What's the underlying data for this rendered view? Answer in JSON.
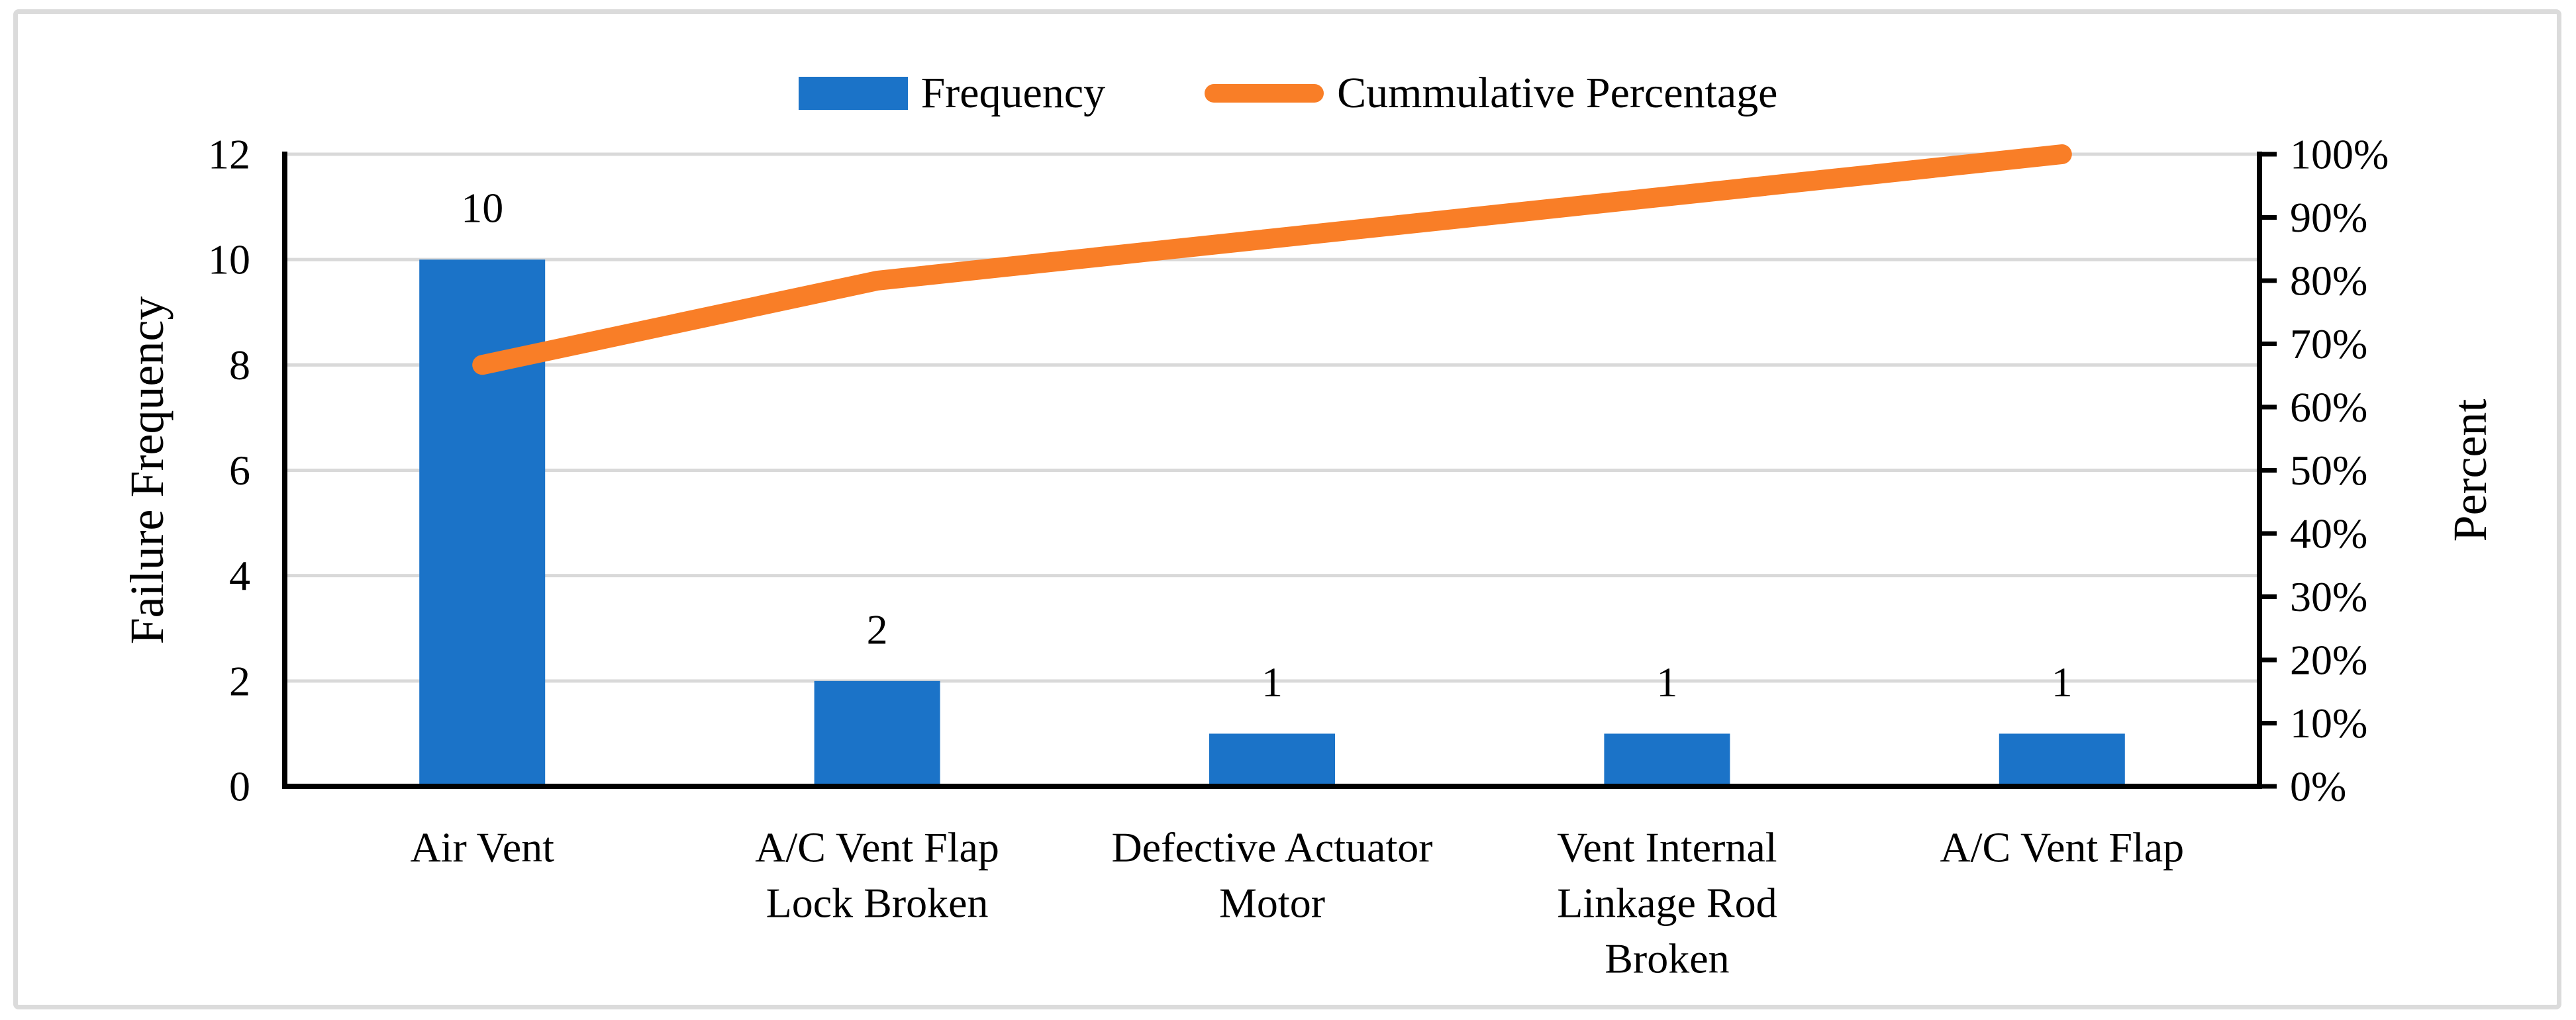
{
  "chart_data": {
    "type": "bar",
    "subtype": "pareto-combo-bar-line",
    "categories": [
      "Air Vent",
      "A/C Vent Flap Lock Broken",
      "Defective Actuator Motor",
      "Vent Internal Linkage Rod Broken",
      "A/C Vent Flap"
    ],
    "category_label_lines": [
      [
        "Air Vent"
      ],
      [
        "A/C Vent Flap",
        "Lock Broken"
      ],
      [
        "Defective Actuator",
        "Motor"
      ],
      [
        "Vent Internal",
        "Linkage Rod",
        "Broken"
      ],
      [
        "A/C Vent Flap"
      ]
    ],
    "series": [
      {
        "name": "Frequency",
        "type": "bar",
        "axis": "left",
        "values": [
          10,
          2,
          1,
          1,
          1
        ],
        "data_labels": [
          "10",
          "2",
          "1",
          "1",
          "1"
        ],
        "color": "#1B73C8"
      },
      {
        "name": "Cummulative Percentage",
        "type": "line",
        "axis": "right",
        "values_percent": [
          66.67,
          80,
          86.67,
          93.33,
          100
        ],
        "color": "#F97E27"
      }
    ],
    "left_axis": {
      "title": "Failure Frequency",
      "min": 0,
      "max": 12,
      "tick_step": 2,
      "tick_labels": [
        "0",
        "2",
        "4",
        "6",
        "8",
        "10",
        "12"
      ]
    },
    "right_axis": {
      "title": "Percent",
      "min": 0,
      "max": 100,
      "tick_step": 10,
      "tick_labels": [
        "0%",
        "10%",
        "20%",
        "30%",
        "40%",
        "50%",
        "60%",
        "70%",
        "80%",
        "90%",
        "100%"
      ]
    },
    "legend": {
      "position": "top-center",
      "items": [
        {
          "label": "Frequency",
          "marker": "bar-swatch"
        },
        {
          "label": "Cummulative Percentage",
          "marker": "line-swatch"
        }
      ]
    },
    "grid": "horizontal gridlines at every 2 units of left axis (0-12)"
  },
  "colors": {
    "bar_blue": "#1B73C8",
    "line_orange": "#F97E27",
    "gridline": "#D9D9D9",
    "axis_line": "#000000",
    "text": "#000000",
    "page_border": "#DBDBDB",
    "background": "#FFFFFF"
  }
}
